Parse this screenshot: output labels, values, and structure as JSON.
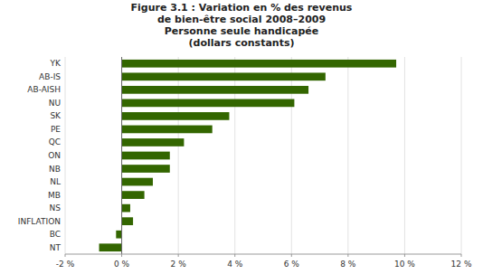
{
  "chart_data": {
    "type": "bar",
    "orientation": "horizontal",
    "title": "Figure 3.1 : Variation en % des revenus\nde bien-être social 2008–2009\nPersonne seule handicapée\n(dollars constants)",
    "categories": [
      "YK",
      "AB-IS",
      "AB-AISH",
      "NU",
      "SK",
      "PE",
      "QC",
      "ON",
      "NB",
      "NL",
      "MB",
      "NS",
      "INFLATION",
      "BC",
      "NT"
    ],
    "values": [
      9.7,
      7.2,
      6.6,
      6.1,
      3.8,
      3.2,
      2.2,
      1.7,
      1.7,
      1.1,
      0.8,
      0.3,
      0.4,
      -0.2,
      -0.8
    ],
    "color": "#336600",
    "xlim": [
      -2,
      12
    ],
    "xticks": [
      {
        "value": -2,
        "label": "-2 %"
      },
      {
        "value": 0,
        "label": "0 %"
      },
      {
        "value": 2,
        "label": "2 %"
      },
      {
        "value": 4,
        "label": "4 %"
      },
      {
        "value": 6,
        "label": "6 %"
      },
      {
        "value": 8,
        "label": "8 %"
      },
      {
        "value": 10,
        "label": "10 %"
      },
      {
        "value": 12,
        "label": "12 %"
      }
    ],
    "grid": true
  }
}
